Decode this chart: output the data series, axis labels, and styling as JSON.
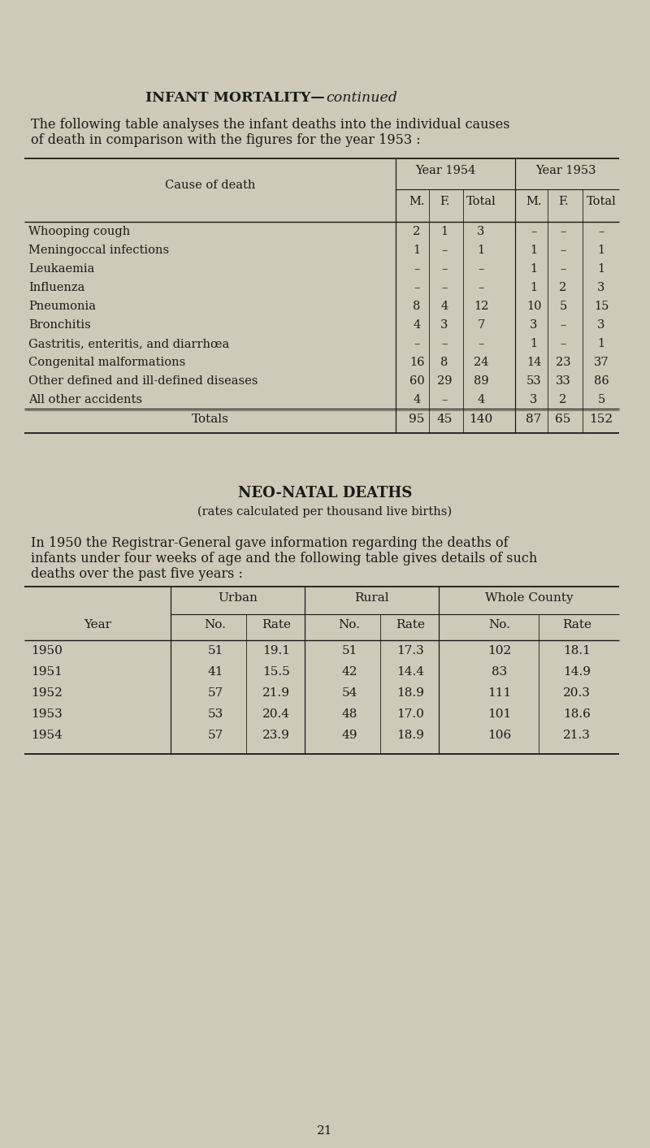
{
  "bg_color": "#cec9b8",
  "text_color": "#1a1a1a",
  "title_normal": "INFANT MORTALITY—",
  "title_italic": "continued",
  "intro_line1": "The following table analyses the infant deaths into the individual causes",
  "intro_line2": "of death in comparison with the figures for the year 1953 :",
  "table1_cause_header": "Cause of death",
  "table1_yr1954": "Year 1954",
  "table1_yr1953": "Year 1953",
  "table1_col_hdrs": [
    "M.",
    "F.",
    "Total",
    "M.",
    "F.",
    "Total"
  ],
  "table1_rows": [
    [
      "Whooping cough",
      "2",
      "1",
      "3",
      "–",
      "–",
      "–"
    ],
    [
      "Meningoccal infections",
      "1",
      "–",
      "1",
      "1",
      "–",
      "1"
    ],
    [
      "Leukaemia",
      "–",
      "–",
      "–",
      "1",
      "–",
      "1"
    ],
    [
      "Influenza",
      "–",
      "–",
      "–",
      "1",
      "2",
      "3"
    ],
    [
      "Pneumonia",
      "8",
      "4",
      "12",
      "10",
      "5",
      "15"
    ],
    [
      "Bronchitis",
      "4",
      "3",
      "7",
      "3",
      "–",
      "3"
    ],
    [
      "Gastritis, enteritis, and diarrhœa",
      "–",
      "–",
      "–",
      "1",
      "–",
      "1"
    ],
    [
      "Congenital malformations",
      "16",
      "8",
      "24",
      "14",
      "23",
      "37"
    ],
    [
      "Other defined and ill-defined diseases",
      "60",
      "29",
      "89",
      "53",
      "33",
      "86"
    ],
    [
      "All other accidents",
      "4",
      "–",
      "4",
      "3",
      "2",
      "5"
    ]
  ],
  "table1_totals": [
    "Totals",
    "95",
    "45",
    "140",
    "87",
    "65",
    "152"
  ],
  "section2_title": "NEO-NATAL DEATHS",
  "section2_sub": "(rates calculated per thousand live births)",
  "section2_line1": "In 1950 the Registrar-General gave information regarding the deaths of",
  "section2_line2": "infants under four weeks of age and the following table gives details of such",
  "section2_line3": "deaths over the past five years :",
  "table2_grp_hdrs": [
    "Urban",
    "Rural",
    "Whole County"
  ],
  "table2_col_hdrs": [
    "Year",
    "No.",
    "Rate",
    "No.",
    "Rate",
    "No.",
    "Rate"
  ],
  "table2_rows": [
    [
      "1950",
      "51",
      "19.1",
      "51",
      "17.3",
      "102",
      "18.1"
    ],
    [
      "1951",
      "41",
      "15.5",
      "42",
      "14.4",
      "83",
      "14.9"
    ],
    [
      "1952",
      "57",
      "21.9",
      "54",
      "18.9",
      "111",
      "20.3"
    ],
    [
      "1953",
      "53",
      "20.4",
      "48",
      "17.0",
      "101",
      "18.6"
    ],
    [
      "1954",
      "57",
      "23.9",
      "49",
      "18.9",
      "106",
      "21.3"
    ]
  ],
  "page_number": "21"
}
